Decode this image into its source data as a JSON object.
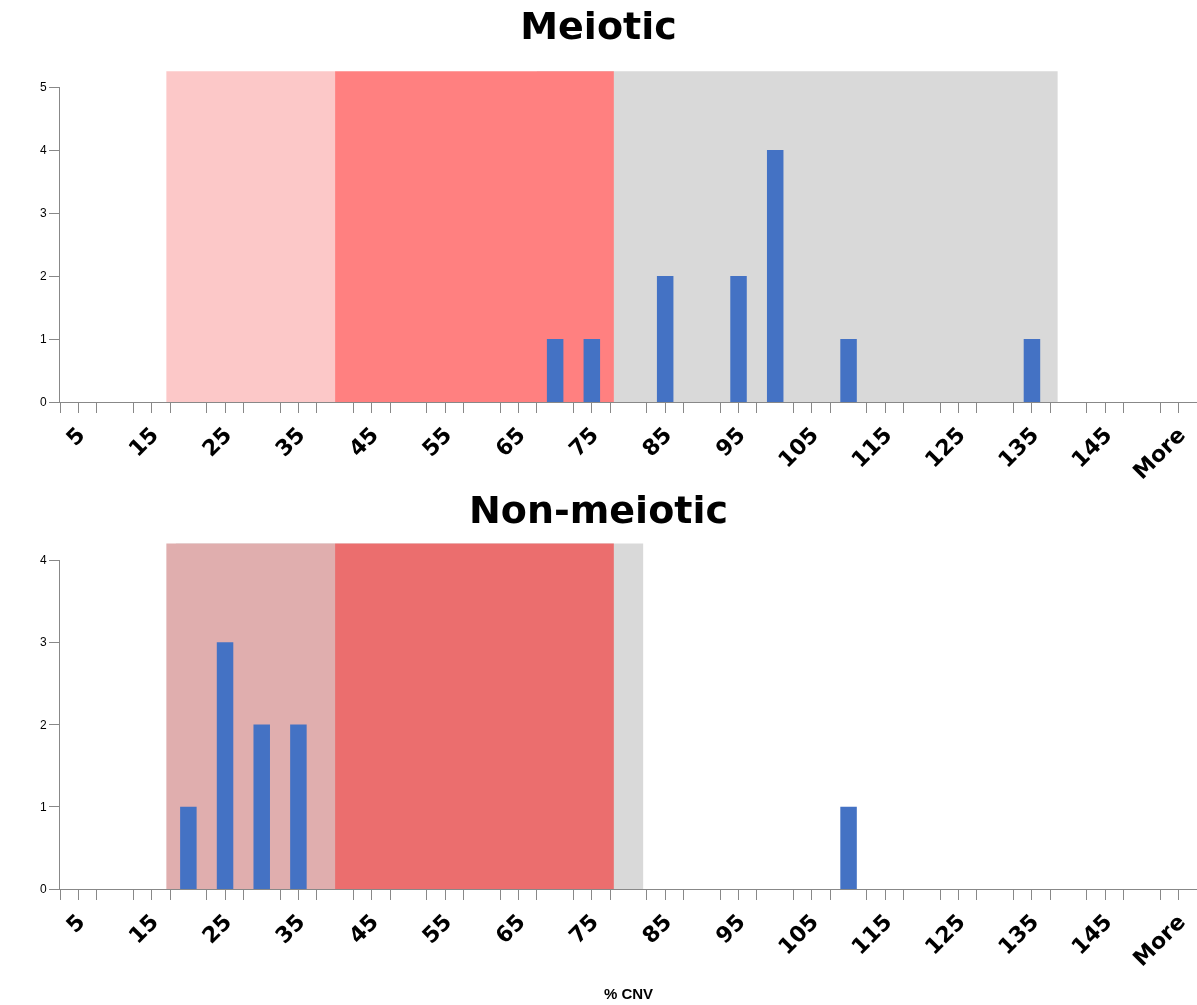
{
  "chart_data": [
    {
      "type": "bar",
      "title": "Meiotic",
      "x": [
        5,
        10,
        15,
        20,
        25,
        30,
        35,
        40,
        45,
        50,
        55,
        60,
        65,
        70,
        75,
        80,
        85,
        90,
        95,
        100,
        105,
        110,
        115,
        120,
        125,
        130,
        135,
        140,
        145,
        150,
        155
      ],
      "values": [
        0,
        0,
        0,
        0,
        0,
        0,
        0,
        0,
        0,
        0,
        0,
        0,
        0,
        1,
        1,
        0,
        2,
        0,
        2,
        4,
        0,
        1,
        0,
        0,
        0,
        0,
        1,
        0,
        0,
        0,
        0
      ],
      "color": "#4472c4",
      "xlim": [
        2.5,
        157.5
      ],
      "xticks": [
        {
          "value": 2.5,
          "label": null
        },
        5,
        {
          "value": 7.5,
          "label": null
        },
        {
          "value": 12.5,
          "label": null
        },
        15,
        {
          "value": 17.5,
          "label": null
        },
        {
          "value": 22.5,
          "label": null
        },
        25,
        {
          "value": 27.5,
          "label": null
        },
        {
          "value": 32.5,
          "label": null
        },
        35,
        {
          "value": 37.5,
          "label": null
        },
        {
          "value": 42.5,
          "label": null
        },
        45,
        {
          "value": 47.5,
          "label": null
        },
        {
          "value": 52.5,
          "label": null
        },
        55,
        {
          "value": 57.5,
          "label": null
        },
        {
          "value": 62.5,
          "label": null
        },
        65,
        {
          "value": 67.5,
          "label": null
        },
        {
          "value": 72.5,
          "label": null
        },
        75,
        {
          "value": 77.5,
          "label": null
        },
        {
          "value": 82.5,
          "label": null
        },
        85,
        {
          "value": 87.5,
          "label": null
        },
        {
          "value": 92.5,
          "label": null
        },
        95,
        {
          "value": 97.5,
          "label": null
        },
        {
          "value": 102.5,
          "label": null
        },
        105,
        {
          "value": 107.5,
          "label": null
        },
        {
          "value": 112.5,
          "label": null
        },
        115,
        {
          "value": 117.5,
          "label": null
        },
        {
          "value": 122.5,
          "label": null
        },
        125,
        {
          "value": 127.5,
          "label": null
        },
        {
          "value": 132.5,
          "label": null
        },
        135,
        {
          "value": 137.5,
          "label": null
        },
        {
          "value": 142.5,
          "label": null
        },
        145,
        {
          "value": 147.5,
          "label": null
        },
        {
          "value": 152.5,
          "label": null
        },
        {
          "value": 155,
          "label": "More"
        },
        {
          "value": 157.5,
          "label": null
        }
      ],
      "ylim": [
        0,
        5
      ],
      "yticks": [
        0,
        1,
        2,
        3,
        4,
        5
      ],
      "grid": false,
      "legend": false,
      "bands": [
        {
          "axis": "x",
          "from": 67.5,
          "to": 138.5,
          "color": "#d9d9d9"
        },
        {
          "axis": "x",
          "from": 17,
          "to": 40,
          "color": "#fcc8c8"
        },
        {
          "axis": "x",
          "from": 40,
          "to": 78,
          "color": "#ff8080"
        }
      ]
    },
    {
      "type": "bar",
      "title": "Non-meiotic",
      "xlabel": "% CNV",
      "x": [
        5,
        10,
        15,
        20,
        25,
        30,
        35,
        40,
        45,
        50,
        55,
        60,
        65,
        70,
        75,
        80,
        85,
        90,
        95,
        100,
        105,
        110,
        115,
        120,
        125,
        130,
        135,
        140,
        145,
        150,
        155
      ],
      "values": [
        0,
        0,
        0,
        1,
        3,
        2,
        2,
        0,
        0,
        0,
        0,
        0,
        0,
        0,
        0,
        0,
        0,
        0,
        0,
        0,
        0,
        1,
        0,
        0,
        0,
        0,
        0,
        0,
        0,
        0,
        0
      ],
      "color": "#4472c4",
      "xlim": [
        2.5,
        157.5
      ],
      "xticks": [
        {
          "value": 2.5,
          "label": null
        },
        5,
        {
          "value": 7.5,
          "label": null
        },
        {
          "value": 12.5,
          "label": null
        },
        15,
        {
          "value": 17.5,
          "label": null
        },
        {
          "value": 22.5,
          "label": null
        },
        25,
        {
          "value": 27.5,
          "label": null
        },
        {
          "value": 32.5,
          "label": null
        },
        35,
        {
          "value": 37.5,
          "label": null
        },
        {
          "value": 42.5,
          "label": null
        },
        45,
        {
          "value": 47.5,
          "label": null
        },
        {
          "value": 52.5,
          "label": null
        },
        55,
        {
          "value": 57.5,
          "label": null
        },
        {
          "value": 62.5,
          "label": null
        },
        65,
        {
          "value": 67.5,
          "label": null
        },
        {
          "value": 72.5,
          "label": null
        },
        75,
        {
          "value": 77.5,
          "label": null
        },
        {
          "value": 82.5,
          "label": null
        },
        85,
        {
          "value": 87.5,
          "label": null
        },
        {
          "value": 92.5,
          "label": null
        },
        95,
        {
          "value": 97.5,
          "label": null
        },
        {
          "value": 102.5,
          "label": null
        },
        105,
        {
          "value": 107.5,
          "label": null
        },
        {
          "value": 112.5,
          "label": null
        },
        115,
        {
          "value": 117.5,
          "label": null
        },
        {
          "value": 122.5,
          "label": null
        },
        125,
        {
          "value": 127.5,
          "label": null
        },
        {
          "value": 132.5,
          "label": null
        },
        135,
        {
          "value": 137.5,
          "label": null
        },
        {
          "value": 142.5,
          "label": null
        },
        145,
        {
          "value": 147.5,
          "label": null
        },
        {
          "value": 152.5,
          "label": null
        },
        {
          "value": 155,
          "label": "More"
        },
        {
          "value": 157.5,
          "label": null
        }
      ],
      "ylim": [
        0,
        4
      ],
      "yticks": [
        0,
        1,
        2,
        3,
        4
      ],
      "grid": false,
      "legend": false,
      "bands": [
        {
          "axis": "x",
          "from": 18.3,
          "to": 82,
          "color": "#d9d9d9"
        },
        {
          "axis": "x",
          "from": 17,
          "to": 40,
          "color": "#e0aeae"
        },
        {
          "axis": "x",
          "from": 40,
          "to": 78,
          "color": "#eb6e6e"
        }
      ]
    }
  ]
}
